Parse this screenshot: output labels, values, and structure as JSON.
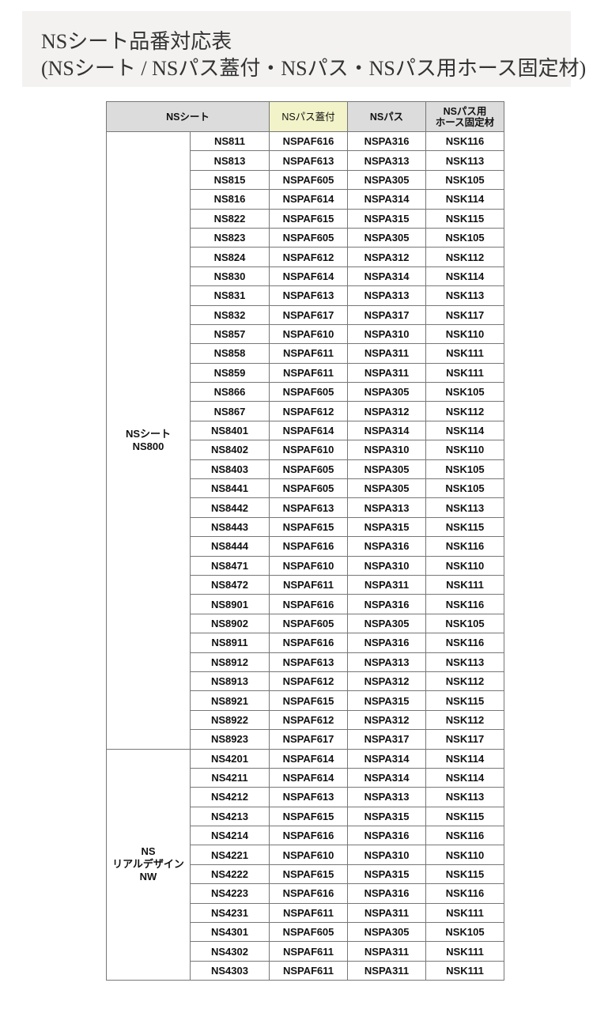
{
  "title": {
    "line1": "NSシート品番対応表",
    "line2": "(NSシート / NSパス蓋付・NSパス・NSパス用ホース固定材)"
  },
  "table": {
    "headers": {
      "sheet": "NSシート",
      "cover": "NSパス蓋付",
      "pass": "NSパス",
      "hose_line1": "NSパス用",
      "hose_line2": "ホース固定材"
    },
    "highlight_color": "#f2f3c8",
    "groups": [
      {
        "label_lines": [
          "NSシート",
          "NS800"
        ],
        "rows": [
          [
            "NS811",
            "NSPAF616",
            "NSPA316",
            "NSK116"
          ],
          [
            "NS813",
            "NSPAF613",
            "NSPA313",
            "NSK113"
          ],
          [
            "NS815",
            "NSPAF605",
            "NSPA305",
            "NSK105"
          ],
          [
            "NS816",
            "NSPAF614",
            "NSPA314",
            "NSK114"
          ],
          [
            "NS822",
            "NSPAF615",
            "NSPA315",
            "NSK115"
          ],
          [
            "NS823",
            "NSPAF605",
            "NSPA305",
            "NSK105"
          ],
          [
            "NS824",
            "NSPAF612",
            "NSPA312",
            "NSK112"
          ],
          [
            "NS830",
            "NSPAF614",
            "NSPA314",
            "NSK114"
          ],
          [
            "NS831",
            "NSPAF613",
            "NSPA313",
            "NSK113"
          ],
          [
            "NS832",
            "NSPAF617",
            "NSPA317",
            "NSK117"
          ],
          [
            "NS857",
            "NSPAF610",
            "NSPA310",
            "NSK110"
          ],
          [
            "NS858",
            "NSPAF611",
            "NSPA311",
            "NSK111"
          ],
          [
            "NS859",
            "NSPAF611",
            "NSPA311",
            "NSK111"
          ],
          [
            "NS866",
            "NSPAF605",
            "NSPA305",
            "NSK105"
          ],
          [
            "NS867",
            "NSPAF612",
            "NSPA312",
            "NSK112"
          ],
          [
            "NS8401",
            "NSPAF614",
            "NSPA314",
            "NSK114"
          ],
          [
            "NS8402",
            "NSPAF610",
            "NSPA310",
            "NSK110"
          ],
          [
            "NS8403",
            "NSPAF605",
            "NSPA305",
            "NSK105"
          ],
          [
            "NS8441",
            "NSPAF605",
            "NSPA305",
            "NSK105"
          ],
          [
            "NS8442",
            "NSPAF613",
            "NSPA313",
            "NSK113"
          ],
          [
            "NS8443",
            "NSPAF615",
            "NSPA315",
            "NSK115"
          ],
          [
            "NS8444",
            "NSPAF616",
            "NSPA316",
            "NSK116"
          ],
          [
            "NS8471",
            "NSPAF610",
            "NSPA310",
            "NSK110"
          ],
          [
            "NS8472",
            "NSPAF611",
            "NSPA311",
            "NSK111"
          ],
          [
            "NS8901",
            "NSPAF616",
            "NSPA316",
            "NSK116"
          ],
          [
            "NS8902",
            "NSPAF605",
            "NSPA305",
            "NSK105"
          ],
          [
            "NS8911",
            "NSPAF616",
            "NSPA316",
            "NSK116"
          ],
          [
            "NS8912",
            "NSPAF613",
            "NSPA313",
            "NSK113"
          ],
          [
            "NS8913",
            "NSPAF612",
            "NSPA312",
            "NSK112"
          ],
          [
            "NS8921",
            "NSPAF615",
            "NSPA315",
            "NSK115"
          ],
          [
            "NS8922",
            "NSPAF612",
            "NSPA312",
            "NSK112"
          ],
          [
            "NS8923",
            "NSPAF617",
            "NSPA317",
            "NSK117"
          ]
        ]
      },
      {
        "label_lines": [
          "NS",
          "リアルデザイン",
          "NW"
        ],
        "rows": [
          [
            "NS4201",
            "NSPAF614",
            "NSPA314",
            "NSK114"
          ],
          [
            "NS4211",
            "NSPAF614",
            "NSPA314",
            "NSK114"
          ],
          [
            "NS4212",
            "NSPAF613",
            "NSPA313",
            "NSK113"
          ],
          [
            "NS4213",
            "NSPAF615",
            "NSPA315",
            "NSK115"
          ],
          [
            "NS4214",
            "NSPAF616",
            "NSPA316",
            "NSK116"
          ],
          [
            "NS4221",
            "NSPAF610",
            "NSPA310",
            "NSK110"
          ],
          [
            "NS4222",
            "NSPAF615",
            "NSPA315",
            "NSK115"
          ],
          [
            "NS4223",
            "NSPAF616",
            "NSPA316",
            "NSK116"
          ],
          [
            "NS4231",
            "NSPAF611",
            "NSPA311",
            "NSK111"
          ],
          [
            "NS4301",
            "NSPAF605",
            "NSPA305",
            "NSK105"
          ],
          [
            "NS4302",
            "NSPAF611",
            "NSPA311",
            "NSK111"
          ],
          [
            "NS4303",
            "NSPAF611",
            "NSPA311",
            "NSK111"
          ]
        ]
      }
    ]
  }
}
